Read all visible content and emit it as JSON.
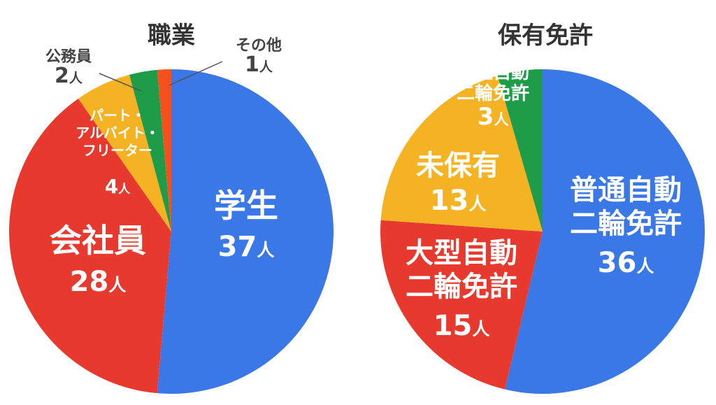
{
  "chart_data": [
    {
      "type": "pie",
      "title": "職業",
      "unit": "人",
      "slices": [
        {
          "label": "学生",
          "value": 37,
          "color": "#3b78e7"
        },
        {
          "label": "会社員",
          "value": 28,
          "color": "#e8392f"
        },
        {
          "label_lines": [
            "パート・",
            "アルバイト・",
            "フリーター"
          ],
          "value": 4,
          "color": "#f5b324"
        },
        {
          "label": "公務員",
          "value": 2,
          "color": "#1f9c4a"
        },
        {
          "label": "その他",
          "value": 1,
          "color": "#f4511e"
        }
      ]
    },
    {
      "type": "pie",
      "title": "保有免許",
      "unit": "人",
      "slices": [
        {
          "label_lines": [
            "普通自動",
            "二輪免許"
          ],
          "value": 36,
          "color": "#3b78e7"
        },
        {
          "label_lines": [
            "大型自動",
            "二輪免許"
          ],
          "value": 15,
          "color": "#e8392f"
        },
        {
          "label": "未保有",
          "value": 13,
          "color": "#f5b324"
        },
        {
          "label_lines": [
            "小型自動",
            "二輪免許"
          ],
          "value": 3,
          "color": "#1f9c4a"
        }
      ]
    }
  ]
}
